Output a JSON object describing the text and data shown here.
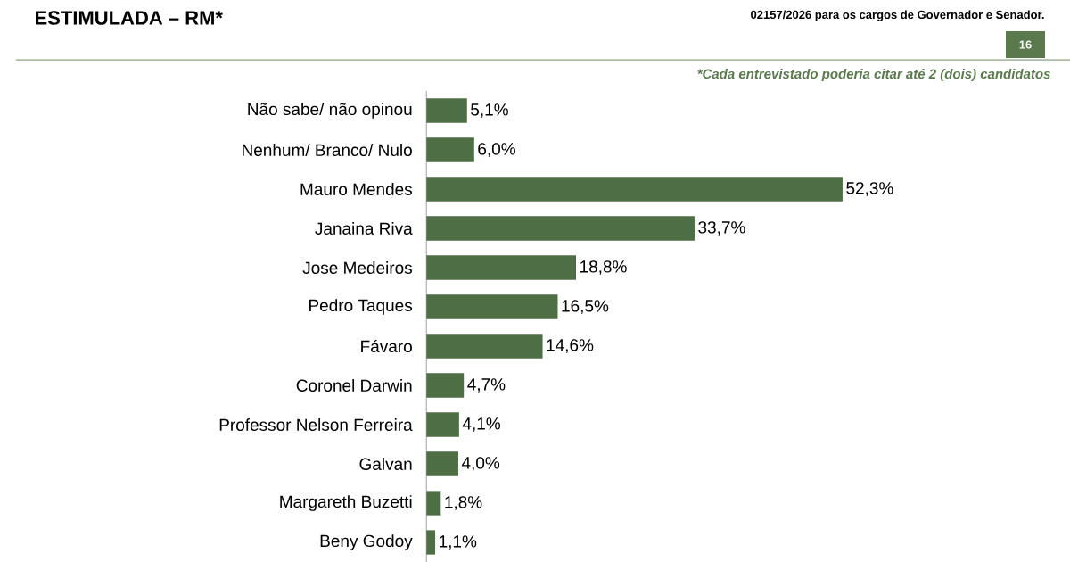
{
  "chart_data": {
    "type": "bar",
    "orientation": "horizontal",
    "title": "ESTIMULADA – RM*",
    "annotations": [
      "02157/2026 para os cargos de Governador e Senador.",
      "16",
      "*Cada entrevistado poderia citar até 2 (dois) candidatos"
    ],
    "categories": [
      "Não sabe/ não opinou",
      "Nenhum/ Branco/ Nulo",
      "Mauro Mendes",
      "Janaina Riva",
      "Jose Medeiros",
      "Pedro Taques",
      "Fávaro",
      "Coronel Darwin",
      "Professor Nelson Ferreira",
      "Galvan",
      "Margareth Buzetti",
      "Beny Godoy"
    ],
    "values": [
      5.1,
      6.0,
      52.3,
      33.7,
      18.8,
      16.5,
      14.6,
      4.7,
      4.1,
      4.0,
      1.8,
      1.1
    ],
    "value_labels": [
      "5,1%",
      "6,0%",
      "52,3%",
      "33,7%",
      "18,8%",
      "16,5%",
      "14,6%",
      "4,7%",
      "4,1%",
      "4,0%",
      "1,8%",
      "1,1%"
    ],
    "color": "#4e6e45"
  }
}
